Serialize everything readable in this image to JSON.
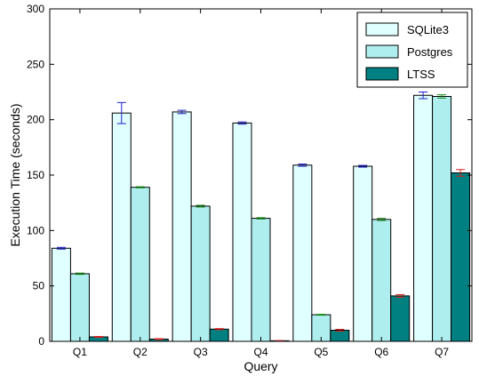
{
  "chart_data": {
    "type": "bar",
    "categories": [
      "Q1",
      "Q2",
      "Q3",
      "Q4",
      "Q5",
      "Q6",
      "Q7"
    ],
    "xlabel": "Query",
    "ylabel": "Execution Time (seconds)",
    "ylim": [
      0,
      300
    ],
    "yticks": [
      0,
      50,
      100,
      150,
      200,
      250,
      300
    ],
    "grid": false,
    "legend_position": "top-right",
    "series": [
      {
        "name": "SQLite3",
        "color": "#e0ffff",
        "error_color": "#1f1fcc",
        "values": [
          84,
          206,
          207,
          197,
          159,
          158,
          222
        ],
        "errors": [
          0.8,
          9.5,
          1.5,
          1.0,
          1.0,
          0.8,
          3.0
        ]
      },
      {
        "name": "Postgres",
        "color": "#afeeee",
        "error_color": "#1a8c1a",
        "values": [
          61,
          139,
          122,
          111,
          24,
          110,
          221
        ],
        "errors": [
          0.6,
          0.5,
          0.8,
          0.6,
          0.4,
          1.0,
          1.5
        ]
      },
      {
        "name": "LTSS",
        "color": "#008080",
        "error_color": "#d42020",
        "values": [
          4,
          2,
          11,
          0.5,
          10,
          41,
          152
        ],
        "errors": [
          0.4,
          0.4,
          0.5,
          0.2,
          0.8,
          1.2,
          3.0
        ]
      }
    ]
  }
}
